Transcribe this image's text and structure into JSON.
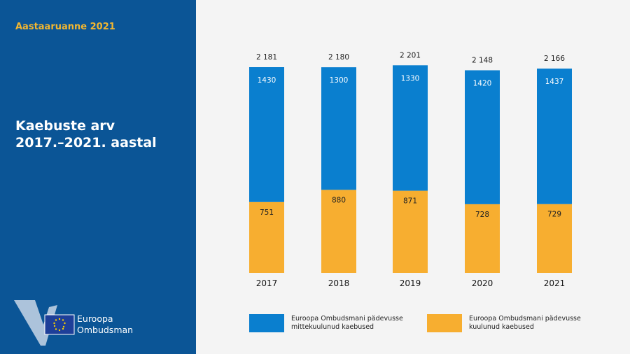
{
  "header": {
    "report": "Aastaaruanne 2021",
    "title_line1": "Kaebuste arv",
    "title_line2": "2017.–2021. aastal"
  },
  "logo": {
    "line1": "Euroopa",
    "line2": "Ombudsman"
  },
  "colors": {
    "outside": "#0a7fcf",
    "inside": "#f7ae30",
    "panel": "#0b5596"
  },
  "chart_data": {
    "type": "bar",
    "stacked": true,
    "title": "Kaebuste arv 2017.–2021. aastal",
    "categories": [
      "2017",
      "2018",
      "2019",
      "2020",
      "2021"
    ],
    "series": [
      {
        "name": "Euroopa Ombudsmani pädevusse kuulunud kaebused",
        "values": [
          751,
          880,
          871,
          728,
          729
        ],
        "labels": [
          "751",
          "880",
          "871",
          "728",
          "729"
        ]
      },
      {
        "name": "Euroopa Ombudsmani pädevusse mittekuulunud kaebused",
        "values": [
          1430,
          1300,
          1330,
          1420,
          1437
        ],
        "labels": [
          "1430",
          "1300",
          "1330",
          "1420",
          "1437"
        ]
      }
    ],
    "totals": [
      2181,
      2180,
      2201,
      2148,
      2166
    ],
    "total_labels": [
      "2 181",
      "2 180",
      "2 201",
      "2 148",
      "2 166"
    ],
    "legend": {
      "position": "bottom",
      "outside_line1": "Euroopa Ombudsmani pädevusse",
      "outside_line2": "mittekuulunud kaebused",
      "inside_line1": "Euroopa Ombudsmani pädevusse",
      "inside_line2": "kuulunud kaebused"
    }
  }
}
